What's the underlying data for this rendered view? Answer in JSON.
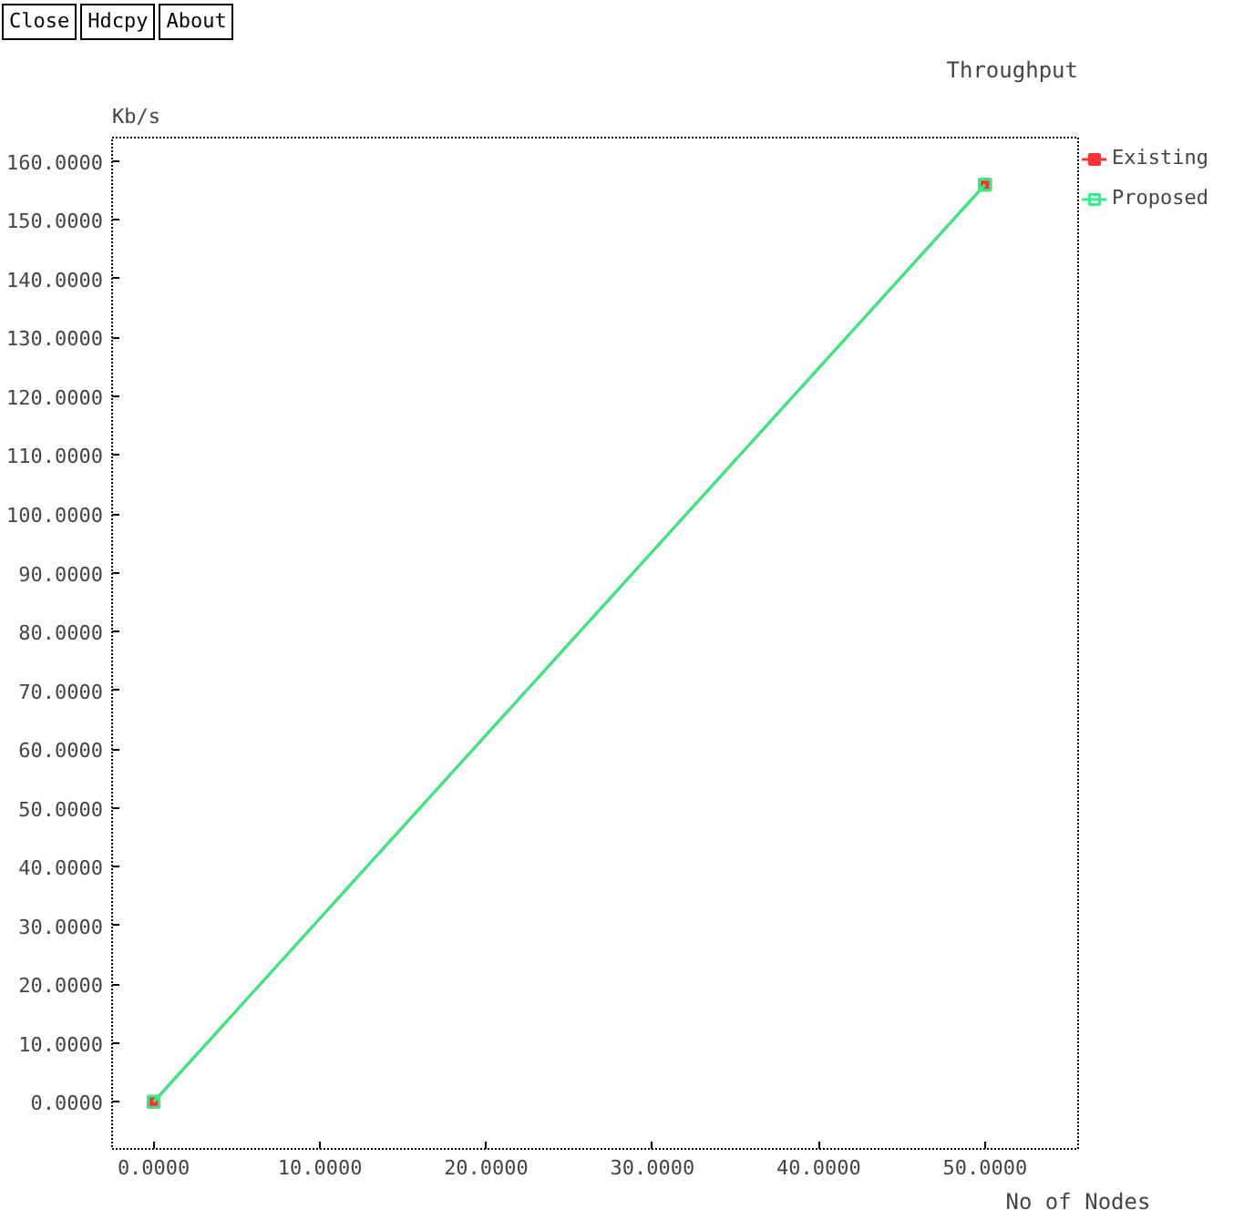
{
  "chart_data": {
    "type": "line",
    "title": "Throughput",
    "xlabel": "No of Nodes",
    "ylabel": "Kb/s",
    "annotations": [
      "Close",
      "Hdcpy",
      "About"
    ],
    "x": [
      0,
      50
    ],
    "series": [
      {
        "name": "Existing",
        "color": "#ff3333",
        "values": [
          0,
          156
        ],
        "marker": "square"
      },
      {
        "name": "Proposed",
        "color": "#33ee88",
        "values": [
          0,
          156
        ],
        "marker": "square"
      }
    ],
    "xlim": [
      -2.5,
      55.6
    ],
    "ylim": [
      -8,
      164
    ],
    "xticks": [
      {
        "value": 0,
        "label": "0.0000"
      },
      {
        "value": 10,
        "label": "10.0000"
      },
      {
        "value": 20,
        "label": "20.0000"
      },
      {
        "value": 30,
        "label": "30.0000"
      },
      {
        "value": 40,
        "label": "40.0000"
      },
      {
        "value": 50,
        "label": "50.0000"
      }
    ],
    "yticks": [
      {
        "value": 0,
        "label": "0.0000"
      },
      {
        "value": 10,
        "label": "10.0000"
      },
      {
        "value": 20,
        "label": "20.0000"
      },
      {
        "value": 30,
        "label": "30.0000"
      },
      {
        "value": 40,
        "label": "40.0000"
      },
      {
        "value": 50,
        "label": "50.0000"
      },
      {
        "value": 60,
        "label": "60.0000"
      },
      {
        "value": 70,
        "label": "70.0000"
      },
      {
        "value": 80,
        "label": "80.0000"
      },
      {
        "value": 90,
        "label": "90.0000"
      },
      {
        "value": 100,
        "label": "100.0000"
      },
      {
        "value": 110,
        "label": "110.0000"
      },
      {
        "value": 120,
        "label": "120.0000"
      },
      {
        "value": 130,
        "label": "130.0000"
      },
      {
        "value": 140,
        "label": "140.0000"
      },
      {
        "value": 150,
        "label": "150.0000"
      },
      {
        "value": 160,
        "label": "160.0000"
      }
    ],
    "grid": false,
    "legend": "right",
    "line_style": "solid"
  }
}
